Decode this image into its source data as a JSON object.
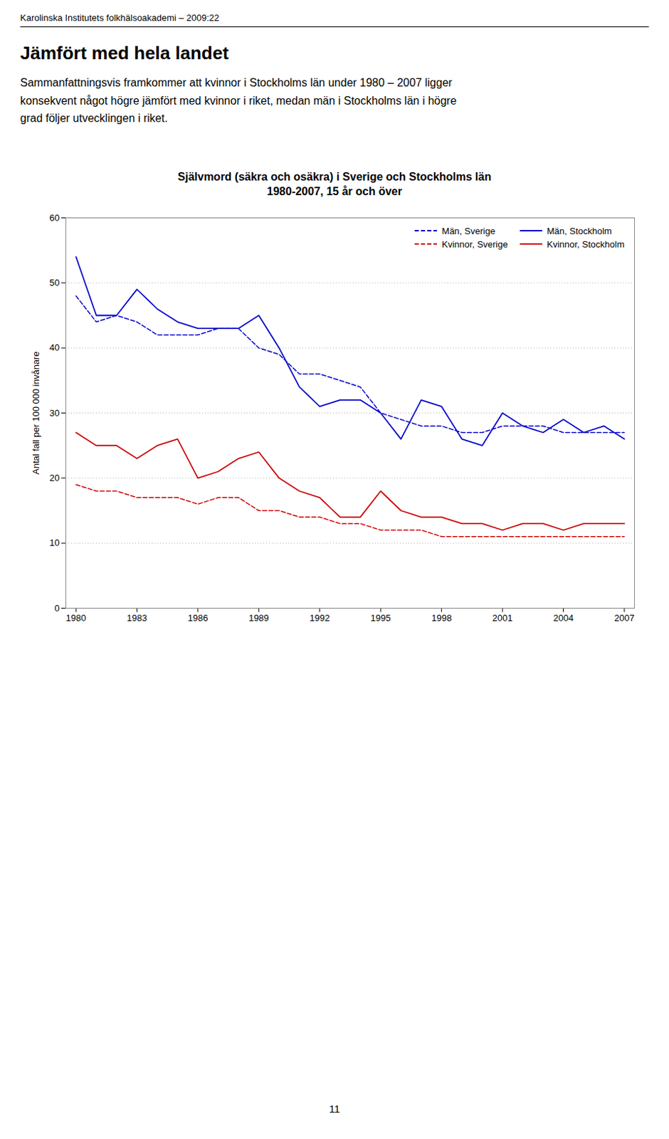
{
  "header": "Karolinska Institutets folkhälsoakademi – 2009:22",
  "heading": "Jämfört med hela landet",
  "body_text": "Sammanfattningsvis framkommer att kvinnor i Stockholms län under 1980 – 2007 ligger\nkonsekvent något högre jämfört med kvinnor i riket, medan män i Stockholms län i högre\ngrad följer utvecklingen i riket.",
  "page_number": "11",
  "chart_data": {
    "type": "line",
    "title": "Självmord (säkra och osäkra) i Sverige och Stockholms län",
    "subtitle": "1980-2007, 15 år och över",
    "ylabel": "Antal fall per 100 000 invånare",
    "x": [
      1980,
      1981,
      1982,
      1983,
      1984,
      1985,
      1986,
      1987,
      1988,
      1989,
      1990,
      1991,
      1992,
      1993,
      1994,
      1995,
      1996,
      1997,
      1998,
      1999,
      2000,
      2001,
      2002,
      2003,
      2004,
      2005,
      2006,
      2007
    ],
    "series": [
      {
        "name": "Män, Sverige",
        "color": "#0000CC",
        "line_style": "dashed",
        "values": [
          48,
          44,
          45,
          44,
          42,
          42,
          42,
          43,
          43,
          40,
          39,
          36,
          36,
          35,
          34,
          30,
          29,
          28,
          28,
          27,
          27,
          28,
          28,
          28,
          27,
          27,
          27,
          27
        ]
      },
      {
        "name": "Män, Stockholm",
        "color": "#0000CC",
        "line_style": "solid",
        "values": [
          54,
          45,
          45,
          49,
          46,
          44,
          43,
          43,
          43,
          45,
          40,
          34,
          31,
          32,
          32,
          30,
          26,
          32,
          31,
          26,
          25,
          30,
          28,
          27,
          29,
          27,
          28,
          26
        ]
      },
      {
        "name": "Kvinnor, Sverige",
        "color": "#CC0000",
        "line_style": "dashed",
        "values": [
          19,
          18,
          18,
          17,
          17,
          17,
          16,
          17,
          17,
          15,
          15,
          14,
          14,
          13,
          13,
          12,
          12,
          12,
          11,
          11,
          11,
          11,
          11,
          11,
          11,
          11,
          11,
          11
        ]
      },
      {
        "name": "Kvinnor, Stockholm",
        "color": "#CC0000",
        "line_style": "solid",
        "values": [
          27,
          25,
          25,
          23,
          25,
          26,
          20,
          21,
          23,
          24,
          20,
          18,
          17,
          14,
          14,
          18,
          15,
          14,
          14,
          13,
          13,
          12,
          13,
          13,
          12,
          13,
          13,
          13
        ]
      }
    ],
    "xlim": [
      1979.5,
      2007.5
    ],
    "xticks": [
      1980,
      1983,
      1986,
      1989,
      1992,
      1995,
      1998,
      2001,
      2004,
      2007
    ],
    "ylim": [
      0,
      60
    ],
    "yticks": [
      0,
      10,
      20,
      30,
      40,
      50,
      60
    ],
    "grid": true,
    "legend": "upper right"
  }
}
